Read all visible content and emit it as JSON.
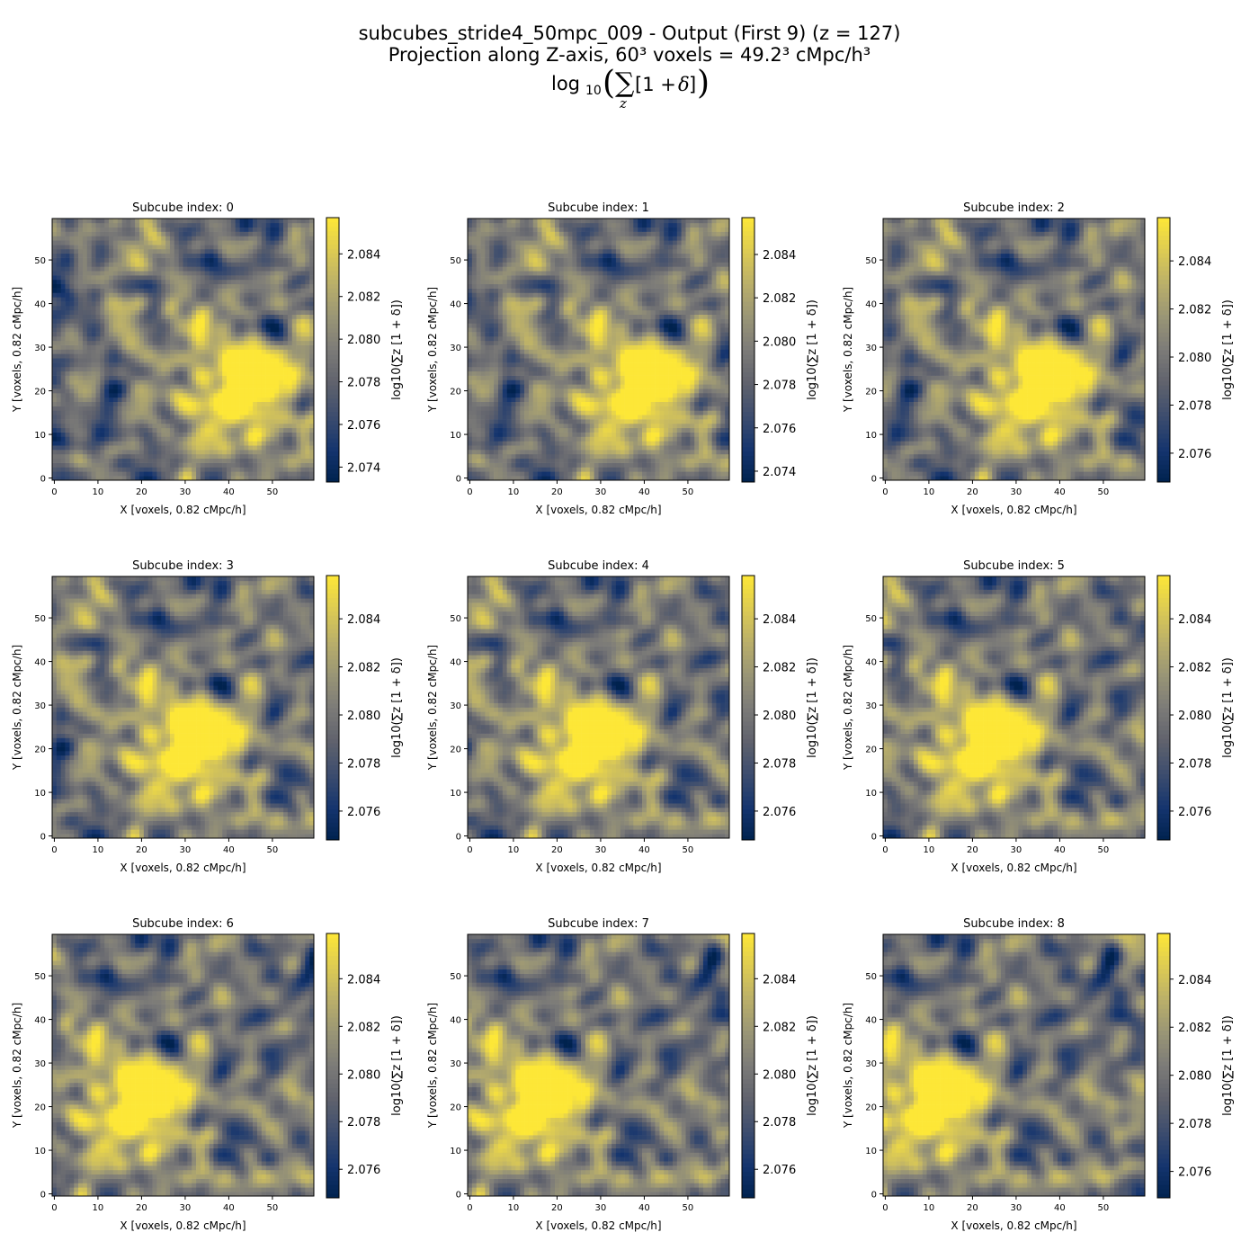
{
  "figure": {
    "title_line1": "subcubes_stride4_50mpc_009 - Output (First 9) (z = 127)",
    "title_line2": "Projection along Z-axis, 60³ voxels = 49.2³ cMpc/h³",
    "title_line3": "log10(∑z [1 + δ])"
  },
  "colormap": "cividis",
  "chart_data": [
    {
      "type": "heatmap",
      "title": "Subcube index: 0",
      "xlabel": "X [voxels, 0.82 cMpc/h]",
      "ylabel": "Y [voxels, 0.82 cMpc/h]",
      "xticks": [
        0,
        10,
        20,
        30,
        40,
        50
      ],
      "yticks": [
        0,
        10,
        20,
        30,
        40,
        50
      ],
      "grid_size": 60,
      "colorbar_label": "log10(∑z [1 + δ])",
      "colorbar_ticks": [
        "2.074",
        "2.076",
        "2.078",
        "2.080",
        "2.082",
        "2.084"
      ],
      "vmin": 2.0733,
      "vmax": 2.0857,
      "seed": 11,
      "shift": 0
    },
    {
      "type": "heatmap",
      "title": "Subcube index: 1",
      "xlabel": "X [voxels, 0.82 cMpc/h]",
      "ylabel": "Y [voxels, 0.82 cMpc/h]",
      "xticks": [
        0,
        10,
        20,
        30,
        40,
        50
      ],
      "yticks": [
        0,
        10,
        20,
        30,
        40,
        50
      ],
      "grid_size": 60,
      "colorbar_label": "log10(∑z [1 + δ])",
      "colorbar_ticks": [
        "2.074",
        "2.076",
        "2.078",
        "2.080",
        "2.082",
        "2.084"
      ],
      "vmin": 2.0735,
      "vmax": 2.0857,
      "seed": 11,
      "shift": 4
    },
    {
      "type": "heatmap",
      "title": "Subcube index: 2",
      "xlabel": "X [voxels, 0.82 cMpc/h]",
      "ylabel": "Y [voxels, 0.82 cMpc/h]",
      "xticks": [
        0,
        10,
        20,
        30,
        40,
        50
      ],
      "yticks": [
        0,
        10,
        20,
        30,
        40,
        50
      ],
      "grid_size": 60,
      "colorbar_label": "log10(∑z [1 + δ])",
      "colorbar_ticks": [
        "2.076",
        "2.078",
        "2.080",
        "2.082",
        "2.084"
      ],
      "vmin": 2.0748,
      "vmax": 2.0858,
      "seed": 11,
      "shift": 8
    },
    {
      "type": "heatmap",
      "title": "Subcube index: 3",
      "xlabel": "X [voxels, 0.82 cMpc/h]",
      "ylabel": "Y [voxels, 0.82 cMpc/h]",
      "xticks": [
        0,
        10,
        20,
        30,
        40,
        50
      ],
      "yticks": [
        0,
        10,
        20,
        30,
        40,
        50
      ],
      "grid_size": 60,
      "colorbar_label": "log10(∑z [1 + δ])",
      "colorbar_ticks": [
        "2.076",
        "2.078",
        "2.080",
        "2.082",
        "2.084"
      ],
      "vmin": 2.0748,
      "vmax": 2.0858,
      "seed": 11,
      "shift": 12
    },
    {
      "type": "heatmap",
      "title": "Subcube index: 4",
      "xlabel": "X [voxels, 0.82 cMpc/h]",
      "ylabel": "Y [voxels, 0.82 cMpc/h]",
      "xticks": [
        0,
        10,
        20,
        30,
        40,
        50
      ],
      "yticks": [
        0,
        10,
        20,
        30,
        40,
        50
      ],
      "grid_size": 60,
      "colorbar_label": "log10(∑z [1 + δ])",
      "colorbar_ticks": [
        "2.076",
        "2.078",
        "2.080",
        "2.082",
        "2.084"
      ],
      "vmin": 2.0748,
      "vmax": 2.0858,
      "seed": 11,
      "shift": 16
    },
    {
      "type": "heatmap",
      "title": "Subcube index: 5",
      "xlabel": "X [voxels, 0.82 cMpc/h]",
      "ylabel": "Y [voxels, 0.82 cMpc/h]",
      "xticks": [
        0,
        10,
        20,
        30,
        40,
        50
      ],
      "yticks": [
        0,
        10,
        20,
        30,
        40,
        50
      ],
      "grid_size": 60,
      "colorbar_label": "log10(∑z [1 + δ])",
      "colorbar_ticks": [
        "2.076",
        "2.078",
        "2.080",
        "2.082",
        "2.084"
      ],
      "vmin": 2.0748,
      "vmax": 2.0858,
      "seed": 11,
      "shift": 20
    },
    {
      "type": "heatmap",
      "title": "Subcube index: 6",
      "xlabel": "X [voxels, 0.82 cMpc/h]",
      "ylabel": "Y [voxels, 0.82 cMpc/h]",
      "xticks": [
        0,
        10,
        20,
        30,
        40,
        50
      ],
      "yticks": [
        0,
        10,
        20,
        30,
        40,
        50
      ],
      "grid_size": 60,
      "colorbar_label": "log10(∑z [1 + δ])",
      "colorbar_ticks": [
        "2.076",
        "2.078",
        "2.080",
        "2.082",
        "2.084"
      ],
      "vmin": 2.0748,
      "vmax": 2.0859,
      "seed": 11,
      "shift": 24
    },
    {
      "type": "heatmap",
      "title": "Subcube index: 7",
      "xlabel": "X [voxels, 0.82 cMpc/h]",
      "ylabel": "Y [voxels, 0.82 cMpc/h]",
      "xticks": [
        0,
        10,
        20,
        30,
        40,
        50
      ],
      "yticks": [
        0,
        10,
        20,
        30,
        40,
        50
      ],
      "grid_size": 60,
      "colorbar_label": "log10(∑z [1 + δ])",
      "colorbar_ticks": [
        "2.076",
        "2.078",
        "2.080",
        "2.082",
        "2.084"
      ],
      "vmin": 2.0748,
      "vmax": 2.0859,
      "seed": 11,
      "shift": 28
    },
    {
      "type": "heatmap",
      "title": "Subcube index: 8",
      "xlabel": "X [voxels, 0.82 cMpc/h]",
      "ylabel": "Y [voxels, 0.82 cMpc/h]",
      "xticks": [
        0,
        10,
        20,
        30,
        40,
        50
      ],
      "yticks": [
        0,
        10,
        20,
        30,
        40,
        50
      ],
      "grid_size": 60,
      "colorbar_label": "log10(∑z [1 + δ])",
      "colorbar_ticks": [
        "2.076",
        "2.078",
        "2.080",
        "2.082",
        "2.084"
      ],
      "vmin": 2.0749,
      "vmax": 2.0859,
      "seed": 11,
      "shift": 32
    }
  ]
}
